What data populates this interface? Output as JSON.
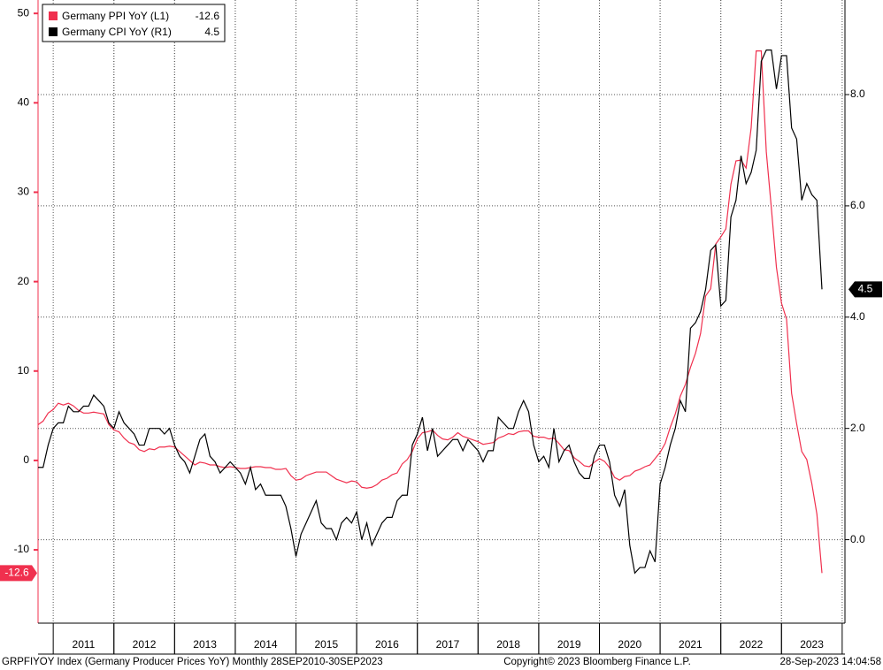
{
  "chart_data": {
    "type": "line",
    "grid": true,
    "legend": "top-left",
    "footer": {
      "source": "GRPFIYOY Index (Germany Producer Prices YoY)  Monthly 28SEP2010-30SEP2023",
      "copyright": "Copyright© 2023 Bloomberg Finance L.P.",
      "timestamp": "28-Sep-2023 14:04:58"
    },
    "categories": [
      null,
      null,
      null,
      null,
      null,
      null,
      null,
      null,
      null,
      "2011",
      null,
      null,
      null,
      null,
      null,
      null,
      null,
      null,
      null,
      null,
      null,
      "2012",
      null,
      null,
      null,
      null,
      null,
      null,
      null,
      null,
      null,
      null,
      null,
      "2013",
      null,
      null,
      null,
      null,
      null,
      null,
      null,
      null,
      null,
      null,
      null,
      "2014",
      null,
      null,
      null,
      null,
      null,
      null,
      null,
      null,
      null,
      null,
      null,
      "2015",
      null,
      null,
      null,
      null,
      null,
      null,
      null,
      null,
      null,
      null,
      null,
      "2016",
      null,
      null,
      null,
      null,
      null,
      null,
      null,
      null,
      null,
      null,
      null,
      "2017",
      null,
      null,
      null,
      null,
      null,
      null,
      null,
      null,
      null,
      null,
      null,
      "2018",
      null,
      null,
      null,
      null,
      null,
      null,
      null,
      null,
      null,
      null,
      null,
      "2019",
      null,
      null,
      null,
      null,
      null,
      null,
      null,
      null,
      null,
      null,
      null,
      "2020",
      null,
      null,
      null,
      null,
      null,
      null,
      null,
      null,
      null,
      null,
      null,
      "2021",
      null,
      null,
      null,
      null,
      null,
      null,
      null,
      null,
      null,
      null,
      null,
      "2022",
      null,
      null,
      null,
      null,
      null,
      null,
      null,
      null,
      null,
      null,
      null,
      "2023",
      null,
      null
    ],
    "ylim": [
      -18.2,
      51.5
    ],
    "yticks": [
      -10,
      0,
      10,
      20,
      30,
      40,
      50
    ],
    "y2lim": [
      -1.5,
      9.7
    ],
    "y2ticks": [
      {
        "value": 0,
        "label": "0.0"
      },
      {
        "value": 2,
        "label": "2.0"
      },
      {
        "value": 4,
        "label": "4.0"
      },
      {
        "value": 6,
        "label": "6.0"
      },
      {
        "value": 8,
        "label": "8.0"
      }
    ],
    "series": [
      {
        "name": "Germany PPI YoY (L1)",
        "color": "#f0304e",
        "axis": "y",
        "values": [
          4.0,
          4.4,
          5.3,
          5.7,
          6.4,
          6.2,
          6.4,
          6.1,
          5.6,
          5.3,
          5.3,
          5.4,
          5.3,
          5.2,
          4.0,
          3.4,
          3.2,
          2.5,
          2.0,
          1.8,
          1.2,
          1.0,
          1.3,
          1.2,
          1.5,
          1.5,
          1.6,
          1.5,
          1.0,
          0.5,
          0.0,
          -0.5,
          -0.2,
          -0.3,
          -0.5,
          -0.5,
          -0.7,
          -0.8,
          -0.7,
          -0.8,
          -0.9,
          -0.9,
          -0.8,
          -0.7,
          -0.7,
          -0.8,
          -0.8,
          -1.0,
          -1.0,
          -0.9,
          -1.7,
          -2.2,
          -2.1,
          -1.7,
          -1.5,
          -1.3,
          -1.3,
          -1.3,
          -1.7,
          -2.1,
          -2.3,
          -2.5,
          -2.3,
          -2.4,
          -3.0,
          -3.1,
          -3.0,
          -2.7,
          -2.2,
          -2.0,
          -1.6,
          -1.4,
          -0.4,
          0.1,
          1.0,
          2.4,
          3.1,
          3.2,
          3.4,
          2.8,
          2.4,
          2.3,
          2.6,
          3.1,
          2.7,
          2.5,
          2.3,
          2.1,
          1.8,
          1.9,
          2.0,
          2.5,
          2.7,
          3.0,
          2.9,
          3.2,
          3.3,
          3.3,
          2.7,
          2.6,
          2.6,
          2.4,
          2.5,
          1.9,
          1.2,
          1.1,
          0.3,
          -0.1,
          -0.6,
          -0.7,
          -0.2,
          0.2,
          -0.1,
          -0.8,
          -1.9,
          -2.2,
          -1.8,
          -1.7,
          -1.2,
          -1.0,
          -0.7,
          -0.5,
          0.2,
          0.9,
          1.9,
          3.7,
          5.2,
          7.2,
          8.5,
          10.4,
          12.0,
          14.2,
          18.4,
          19.2,
          24.2,
          25.0,
          25.9,
          30.9,
          33.5,
          33.6,
          32.7,
          37.2,
          45.8,
          45.8,
          34.5,
          28.2,
          21.6,
          17.6,
          15.8,
          7.5,
          4.1,
          1.0,
          0.1,
          -2.6,
          -6.0,
          -12.6
        ]
      },
      {
        "name": "Germany CPI YoY (R1)",
        "color": "#000000",
        "axis": "y2",
        "values": [
          1.3,
          1.3,
          1.7,
          2.0,
          2.1,
          2.1,
          2.4,
          2.3,
          2.3,
          2.4,
          2.4,
          2.6,
          2.5,
          2.4,
          2.1,
          2.0,
          2.3,
          2.1,
          2.0,
          1.9,
          1.7,
          1.7,
          2.0,
          2.0,
          2.0,
          1.9,
          2.0,
          1.7,
          1.5,
          1.4,
          1.2,
          1.5,
          1.8,
          1.9,
          1.5,
          1.4,
          1.2,
          1.3,
          1.4,
          1.3,
          1.2,
          1.0,
          1.3,
          0.9,
          1.0,
          0.8,
          0.8,
          0.8,
          0.8,
          0.6,
          0.2,
          -0.3,
          0.1,
          0.3,
          0.5,
          0.7,
          0.3,
          0.2,
          0.2,
          0.0,
          0.3,
          0.4,
          0.3,
          0.5,
          0.0,
          0.3,
          -0.1,
          0.1,
          0.3,
          0.4,
          0.4,
          0.7,
          0.8,
          0.8,
          1.7,
          1.9,
          2.2,
          1.6,
          2.0,
          1.5,
          1.6,
          1.7,
          1.8,
          1.8,
          1.6,
          1.8,
          1.7,
          1.6,
          1.4,
          1.6,
          1.6,
          2.2,
          2.1,
          2.0,
          2.0,
          2.3,
          2.5,
          2.3,
          1.7,
          1.4,
          1.5,
          1.3,
          2.0,
          1.4,
          1.6,
          1.7,
          1.4,
          1.2,
          1.1,
          1.1,
          1.5,
          1.7,
          1.7,
          1.4,
          0.8,
          0.6,
          0.9,
          -0.1,
          -0.6,
          -0.5,
          -0.5,
          -0.2,
          -0.4,
          1.0,
          1.3,
          1.7,
          2.0,
          2.5,
          2.3,
          3.8,
          3.9,
          4.1,
          4.5,
          5.2,
          5.3,
          4.2,
          4.3,
          5.8,
          6.1,
          6.9,
          6.4,
          6.6,
          7.0,
          8.6,
          8.8,
          8.8,
          8.1,
          8.7,
          8.7,
          7.4,
          7.2,
          6.1,
          6.4,
          6.2,
          6.1,
          4.5
        ]
      }
    ]
  }
}
